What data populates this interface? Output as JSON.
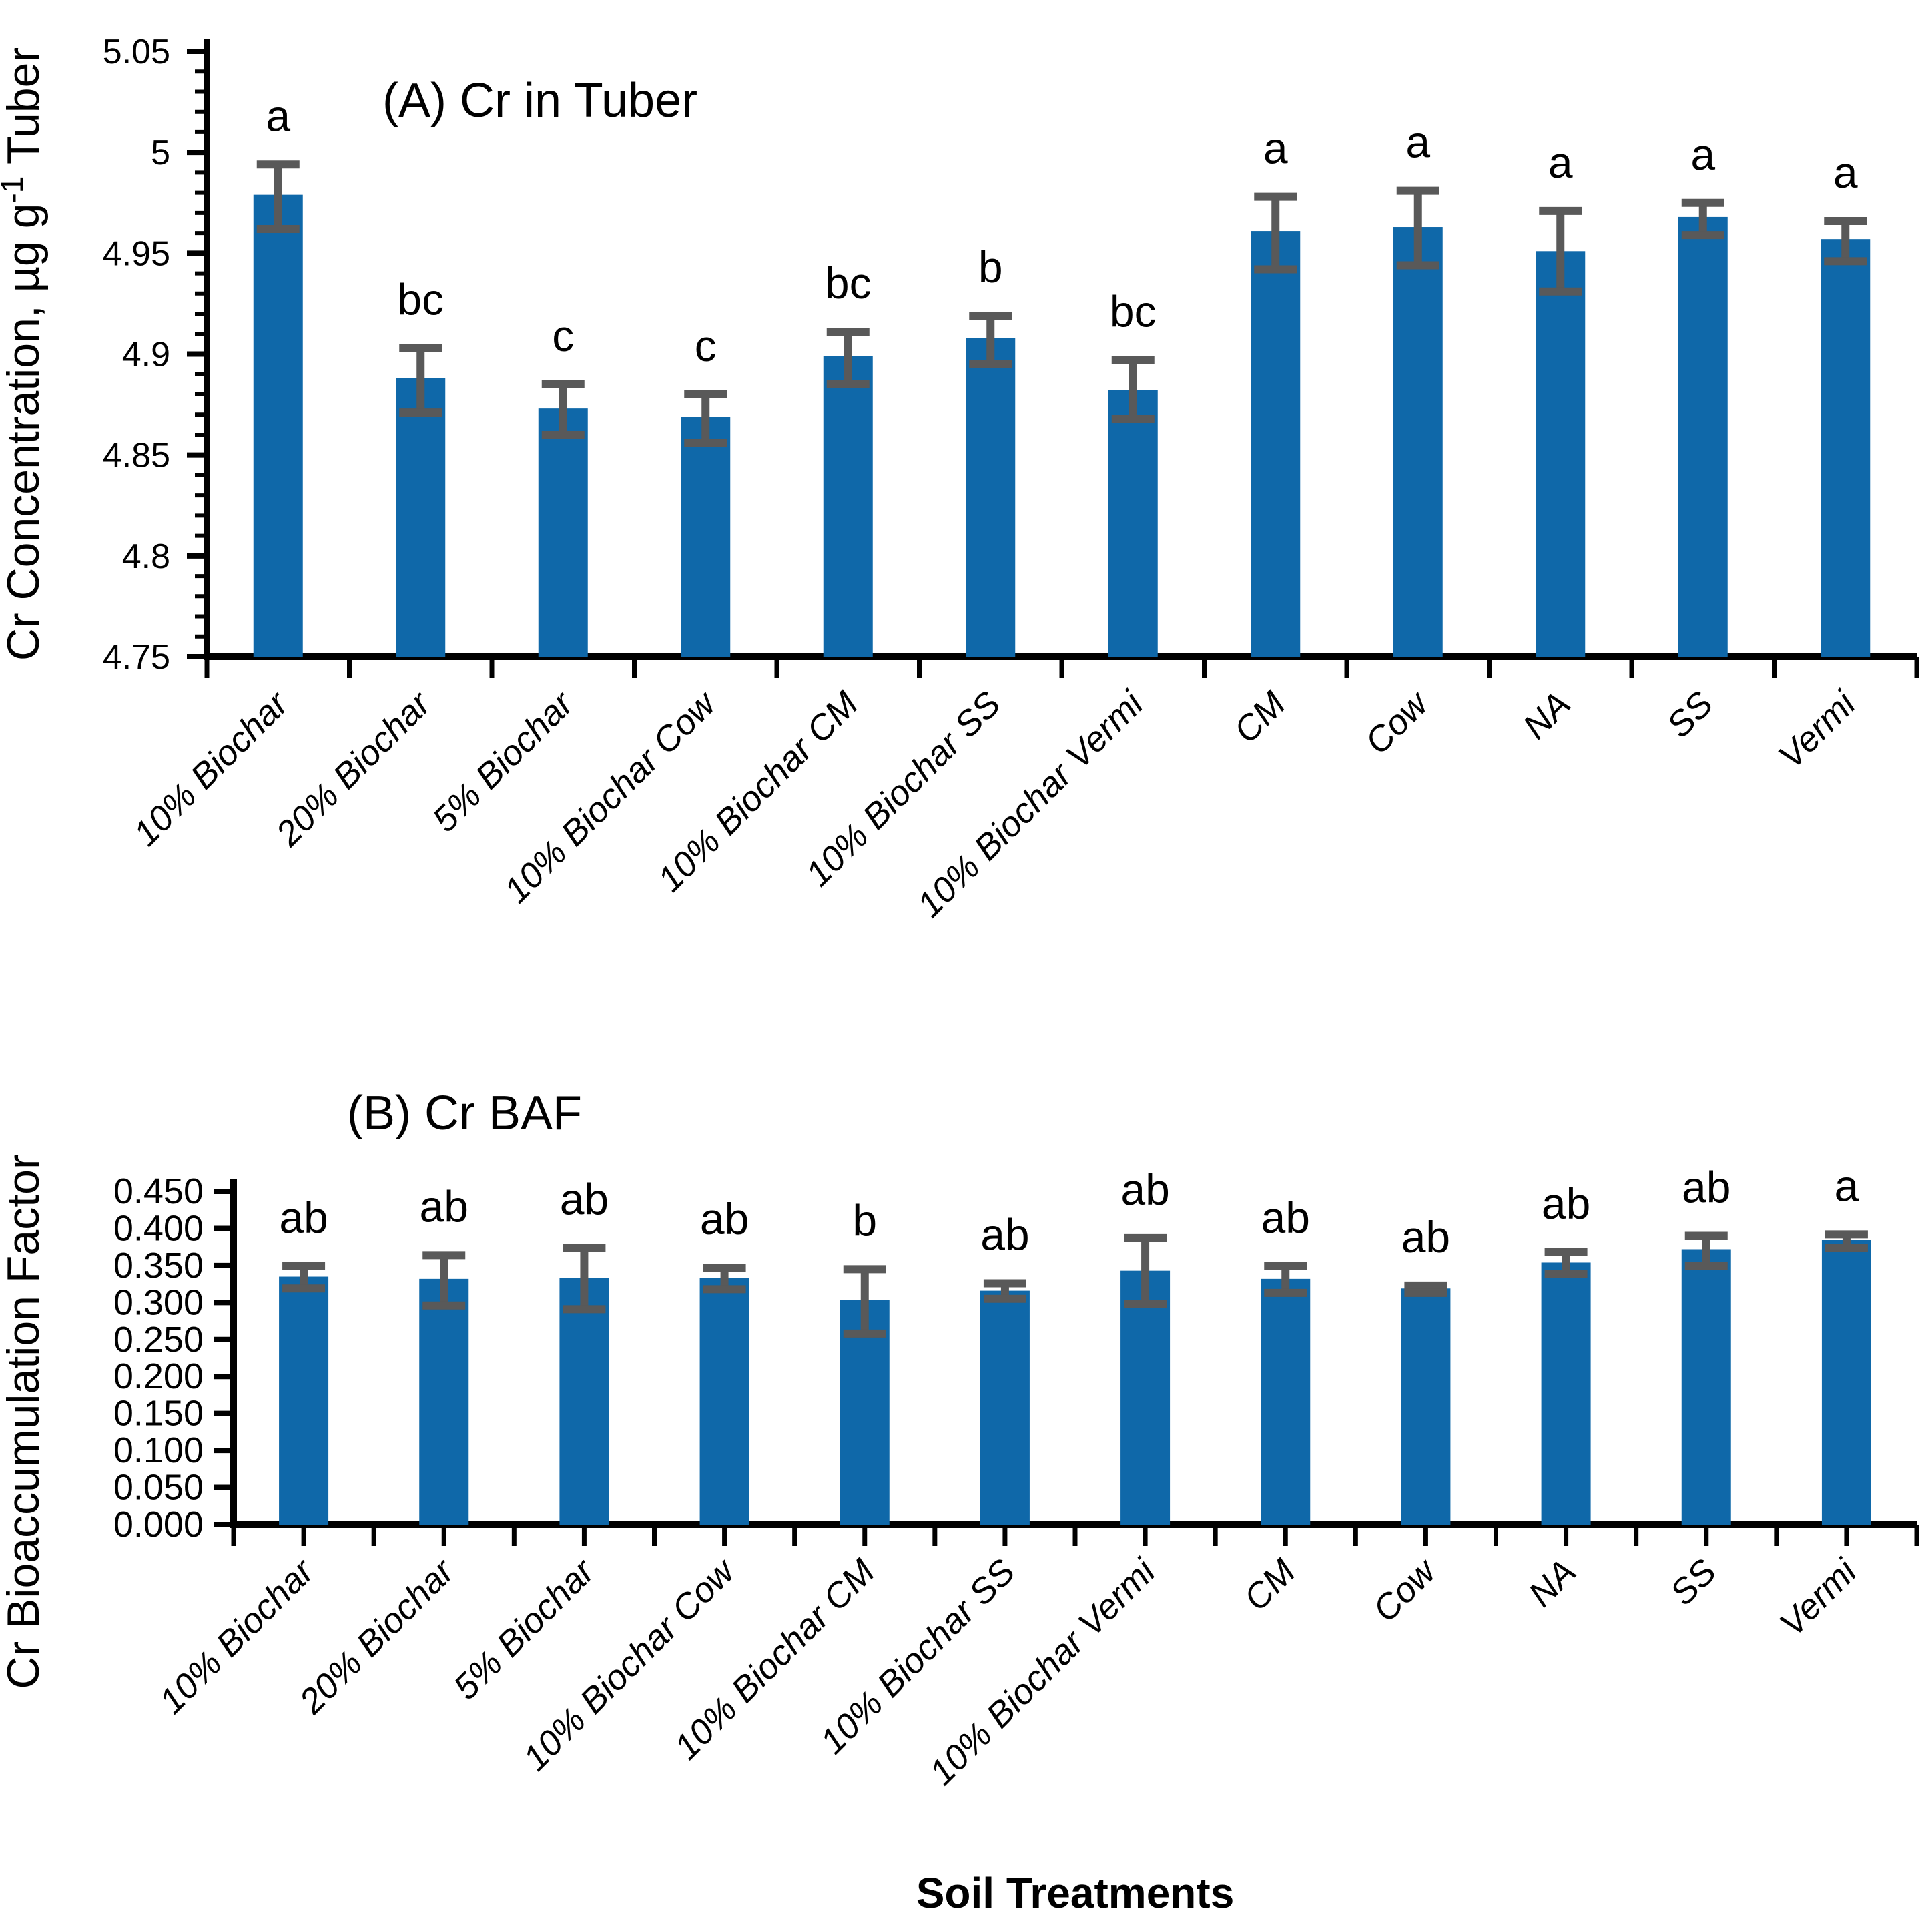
{
  "colors": {
    "bar": "#0f68a9",
    "error_bar": "#595959",
    "axis": "#000000",
    "text": "#000000"
  },
  "chart_data": [
    {
      "type": "bar",
      "panel_label": "A",
      "title": "(A) Cr in Tuber",
      "ylabel": "Cr Concentration, µg g⁻¹ Tuber",
      "ylabel_rich": {
        "pre": "Cr Concentration, µg g",
        "sup": "-1",
        "post": " Tuber"
      },
      "xlabel": "",
      "categories": [
        "10% Biochar",
        "20% Biochar",
        "5% Biochar",
        "10% Biochar Cow",
        "10% Biochar CM",
        "10% Biochar SS",
        "10% Biochar Vermi",
        "CM",
        "Cow",
        "NA",
        "SS",
        "Vermi"
      ],
      "values": [
        4.979,
        4.888,
        4.873,
        4.869,
        4.899,
        4.908,
        4.882,
        4.961,
        4.963,
        4.951,
        4.968,
        4.957
      ],
      "error_low": [
        4.962,
        4.871,
        4.86,
        4.856,
        4.885,
        4.895,
        4.868,
        4.942,
        4.944,
        4.931,
        4.959,
        4.946
      ],
      "error_high": [
        4.994,
        4.903,
        4.885,
        4.88,
        4.911,
        4.919,
        4.897,
        4.978,
        4.981,
        4.971,
        4.975,
        4.966
      ],
      "sig_letters": [
        "a",
        "bc",
        "c",
        "c",
        "bc",
        "b",
        "bc",
        "a",
        "a",
        "a",
        "a",
        "a"
      ],
      "ylim": [
        4.75,
        5.05
      ],
      "ytick_step": 0.05,
      "ytick_minor_step": 0.01,
      "ytick_label_format": "auto",
      "ytick_labels": [
        "4.75",
        "4.8",
        "4.85",
        "4.9",
        "4.95",
        "5",
        "5.05"
      ],
      "grid": false,
      "legend": false
    },
    {
      "type": "bar",
      "panel_label": "B",
      "title": "(B) Cr BAF",
      "ylabel": "Cr Bioaccumulation Factor",
      "xlabel": "Soil Treatments",
      "categories": [
        "10% Biochar",
        "20% Biochar",
        "5% Biochar",
        "10% Biochar Cow",
        "10% Biochar CM",
        "10% Biochar SS",
        "10% Biochar Vermi",
        "CM",
        "Cow",
        "NA",
        "SS",
        "Vermi"
      ],
      "values": [
        0.335,
        0.332,
        0.333,
        0.333,
        0.303,
        0.316,
        0.343,
        0.332,
        0.319,
        0.354,
        0.372,
        0.385
      ],
      "error_low": [
        0.319,
        0.296,
        0.291,
        0.318,
        0.258,
        0.305,
        0.298,
        0.313,
        0.313,
        0.339,
        0.349,
        0.374
      ],
      "error_high": [
        0.349,
        0.364,
        0.374,
        0.347,
        0.345,
        0.326,
        0.387,
        0.349,
        0.323,
        0.368,
        0.39,
        0.392
      ],
      "sig_letters": [
        "ab",
        "ab",
        "ab",
        "ab",
        "b",
        "ab",
        "ab",
        "ab",
        "ab",
        "ab",
        "ab",
        "a"
      ],
      "ylim": [
        0.0,
        0.45
      ],
      "ytick_step": 0.05,
      "ytick_minor_step": null,
      "ytick_label_format": "fixed3",
      "ytick_labels": [
        "0.000",
        "0.050",
        "0.100",
        "0.150",
        "0.200",
        "0.250",
        "0.300",
        "0.350",
        "0.400",
        "0.450"
      ],
      "grid": false,
      "legend": false
    }
  ]
}
